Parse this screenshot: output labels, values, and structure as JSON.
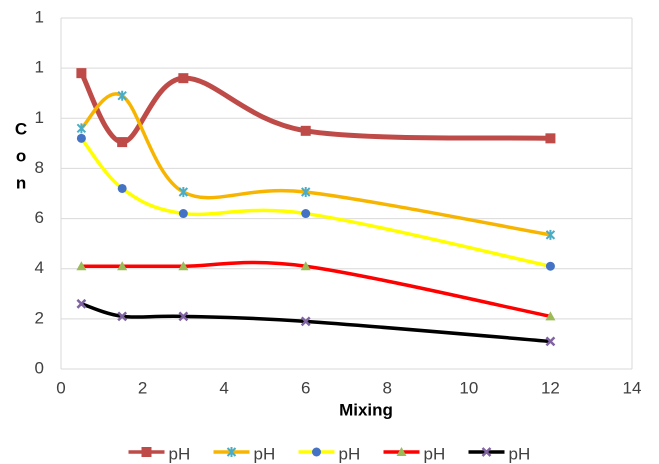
{
  "chart_data": {
    "type": "line",
    "x_label": "Mixing",
    "y_label": "Con",
    "x": [
      0.5,
      1.5,
      3,
      6,
      12
    ],
    "series": [
      {
        "name": "pH",
        "color": "#be4b48",
        "marker": "square",
        "marker_color": "#be4b48",
        "values": [
          11.8,
          9.05,
          11.6,
          9.5,
          9.2
        ]
      },
      {
        "name": "pH",
        "color": "#f7b500",
        "marker": "star",
        "marker_color": "#4bacc6",
        "values": [
          9.6,
          10.9,
          7.06,
          7.06,
          5.35
        ]
      },
      {
        "name": "pH",
        "color": "#ffff00",
        "marker": "circle",
        "marker_color": "#4472c4",
        "values": [
          9.2,
          7.2,
          6.2,
          6.2,
          4.1
        ]
      },
      {
        "name": "pH",
        "color": "#ff0000",
        "marker": "triangle",
        "marker_color": "#9bbb59",
        "values": [
          4.1,
          4.1,
          4.1,
          4.1,
          2.1
        ]
      },
      {
        "name": "pH",
        "color": "#000000",
        "marker": "x",
        "marker_color": "#8064a2",
        "values": [
          2.6,
          2.1,
          2.1,
          1.9,
          1.1
        ]
      }
    ],
    "xlim": [
      0,
      14
    ],
    "xticks": [
      0,
      2,
      4,
      6,
      8,
      10,
      12,
      14
    ],
    "ylim": [
      0,
      14
    ],
    "yticks": [
      0,
      2,
      4,
      6,
      8,
      {
        "value": 10,
        "label": "1"
      },
      {
        "value": 12,
        "label": "1"
      },
      {
        "value": 14,
        "label": "1"
      }
    ],
    "grid": true,
    "smooth": true,
    "legend": "bottom"
  }
}
